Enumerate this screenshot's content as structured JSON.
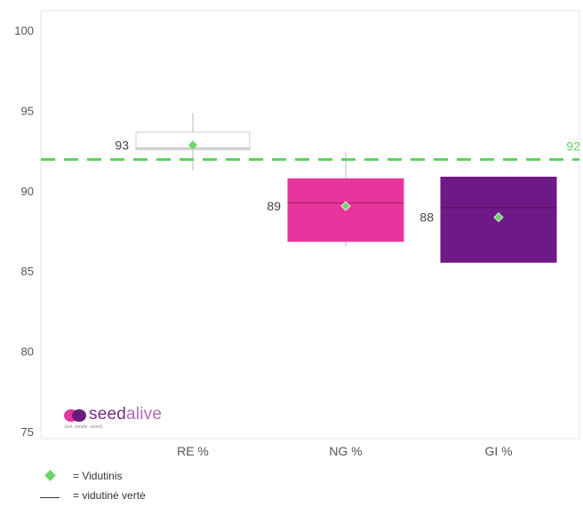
{
  "chart_data": {
    "type": "box",
    "title": "",
    "xlabel": "",
    "ylabel": "",
    "ylim": [
      74.5,
      101
    ],
    "yticks": [
      75,
      80,
      85,
      90,
      95,
      100
    ],
    "grid": false,
    "categories": [
      "RE %",
      "NG %",
      "GI %"
    ],
    "series": [
      {
        "category": "RE %",
        "q1": 92.6,
        "median": 92.7,
        "q3": 93.7,
        "whisker_low": 91.3,
        "whisker_high": 94.9,
        "mean": 92.9,
        "label": "93",
        "color": "#ffffff",
        "edge": "#cccccc"
      },
      {
        "category": "NG %",
        "q1": 86.9,
        "median": 89.3,
        "q3": 90.8,
        "whisker_low": 86.6,
        "whisker_high": 92.5,
        "mean": 89.1,
        "label": "89",
        "color": "#e8359e",
        "edge": "#e8359e"
      },
      {
        "category": "GI %",
        "q1": 85.6,
        "median": 89.0,
        "q3": 90.9,
        "whisker_low": 85.6,
        "whisker_high": 90.9,
        "mean": 88.4,
        "label": "88",
        "color": "#6e1a86",
        "edge": "#6e1a86"
      }
    ],
    "reference_line": {
      "value": 92,
      "label": "92",
      "color": "#5ecf5e",
      "style": "dashed"
    },
    "mean_marker_color": "#6fd36a"
  },
  "logo": {
    "seed": "seed",
    "alive": "alive",
    "tagline": "Just. simple. sound."
  },
  "legend": {
    "mean_text": "= Vidutinis",
    "median_text": "= vidutinė vertė"
  }
}
